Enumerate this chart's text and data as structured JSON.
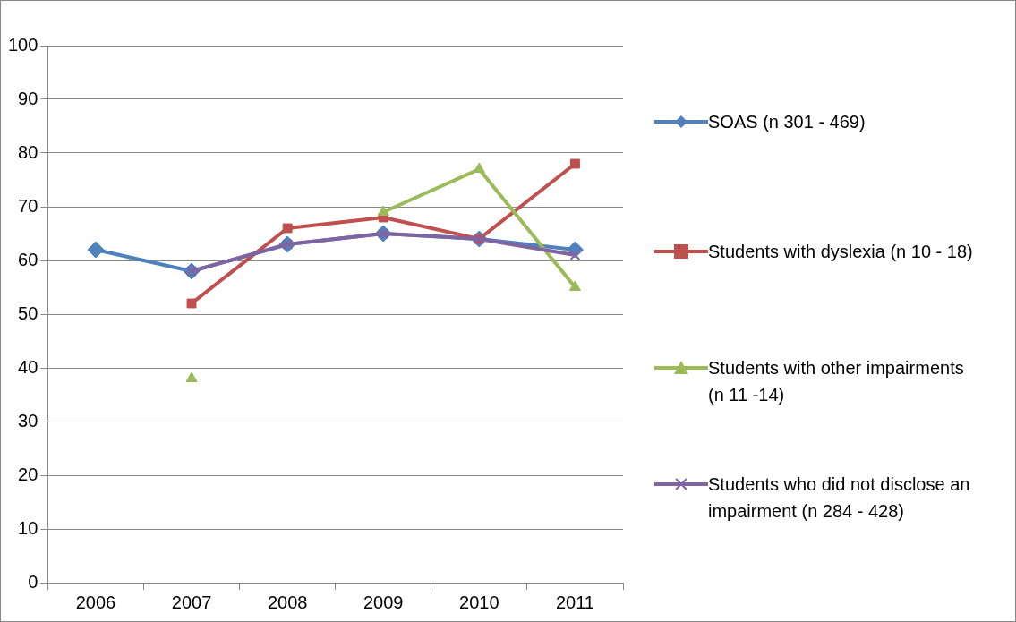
{
  "chart_data": {
    "type": "line",
    "categories": [
      "2006",
      "2007",
      "2008",
      "2009",
      "2010",
      "2011"
    ],
    "series": [
      {
        "name": "SOAS (n 301 - 469)",
        "color": "#4f81bd",
        "marker": "diamond",
        "values": [
          62,
          58,
          63,
          65,
          64,
          62
        ]
      },
      {
        "name": "Students with dyslexia (n 10 - 18)",
        "color": "#c0504d",
        "marker": "square",
        "values": [
          null,
          52,
          66,
          68,
          64,
          78
        ]
      },
      {
        "name": "Students with other impairments (n 11 -14)",
        "color": "#9bbb59",
        "marker": "triangle",
        "values": [
          null,
          38,
          null,
          69,
          77,
          55
        ]
      },
      {
        "name": "Students who did not disclose an impairment (n 284 - 428)",
        "color": "#8064a2",
        "marker": "cross",
        "values": [
          null,
          58,
          63,
          65,
          64,
          61
        ]
      }
    ],
    "ylim": [
      0,
      100
    ],
    "yticks": [
      0,
      10,
      20,
      30,
      40,
      50,
      60,
      70,
      80,
      90,
      100
    ],
    "grid": "y",
    "legend": "right"
  }
}
